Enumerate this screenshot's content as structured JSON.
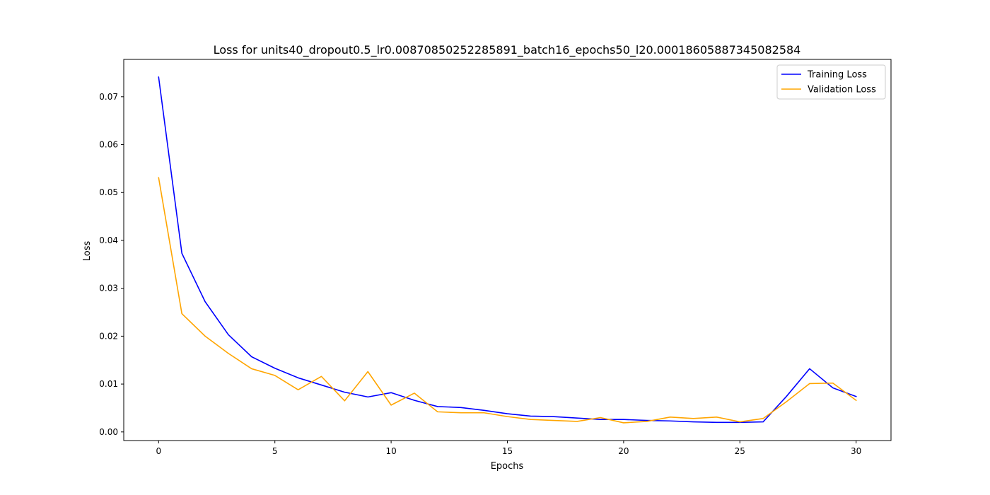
{
  "chart_data": {
    "type": "line",
    "title": "Loss for units40_dropout0.5_lr0.00870850252285891_batch16_epochs50_l20.00018605887345082584",
    "xlabel": "Epochs",
    "ylabel": "Loss",
    "xlim": [
      -1.5,
      31.5
    ],
    "ylim": [
      -0.0018,
      0.0778
    ],
    "xticks": [
      0,
      5,
      10,
      15,
      20,
      25,
      30
    ],
    "xtick_labels": [
      "0",
      "5",
      "10",
      "15",
      "20",
      "25",
      "30"
    ],
    "yticks": [
      0.0,
      0.01,
      0.02,
      0.03,
      0.04,
      0.05,
      0.06,
      0.07
    ],
    "ytick_labels": [
      "0.00",
      "0.01",
      "0.02",
      "0.03",
      "0.04",
      "0.05",
      "0.06",
      "0.07"
    ],
    "grid": false,
    "legend_position": "top-right",
    "x": [
      0,
      1,
      2,
      3,
      4,
      5,
      6,
      7,
      8,
      9,
      10,
      11,
      12,
      13,
      14,
      15,
      16,
      17,
      18,
      19,
      20,
      21,
      22,
      23,
      24,
      25,
      26,
      27,
      28,
      29,
      30
    ],
    "series": [
      {
        "name": "Training Loss",
        "color": "#0000ff",
        "values": [
          0.0741,
          0.0373,
          0.0272,
          0.0203,
          0.0157,
          0.0133,
          0.0113,
          0.0098,
          0.0083,
          0.0073,
          0.0082,
          0.0066,
          0.0053,
          0.0051,
          0.0045,
          0.0038,
          0.0033,
          0.0032,
          0.0029,
          0.0026,
          0.0026,
          0.0024,
          0.0023,
          0.0021,
          0.002,
          0.002,
          0.0021,
          0.0074,
          0.0132,
          0.0092,
          0.0074
        ]
      },
      {
        "name": "Validation Loss",
        "color": "#ffa500",
        "values": [
          0.0531,
          0.0247,
          0.02,
          0.0164,
          0.0132,
          0.0118,
          0.0088,
          0.0116,
          0.0065,
          0.0126,
          0.0056,
          0.0081,
          0.0042,
          0.004,
          0.004,
          0.0032,
          0.0026,
          0.0024,
          0.0022,
          0.003,
          0.0019,
          0.0022,
          0.0031,
          0.0028,
          0.0031,
          0.0021,
          0.0028,
          0.0063,
          0.0101,
          0.0102,
          0.0066
        ]
      }
    ]
  }
}
